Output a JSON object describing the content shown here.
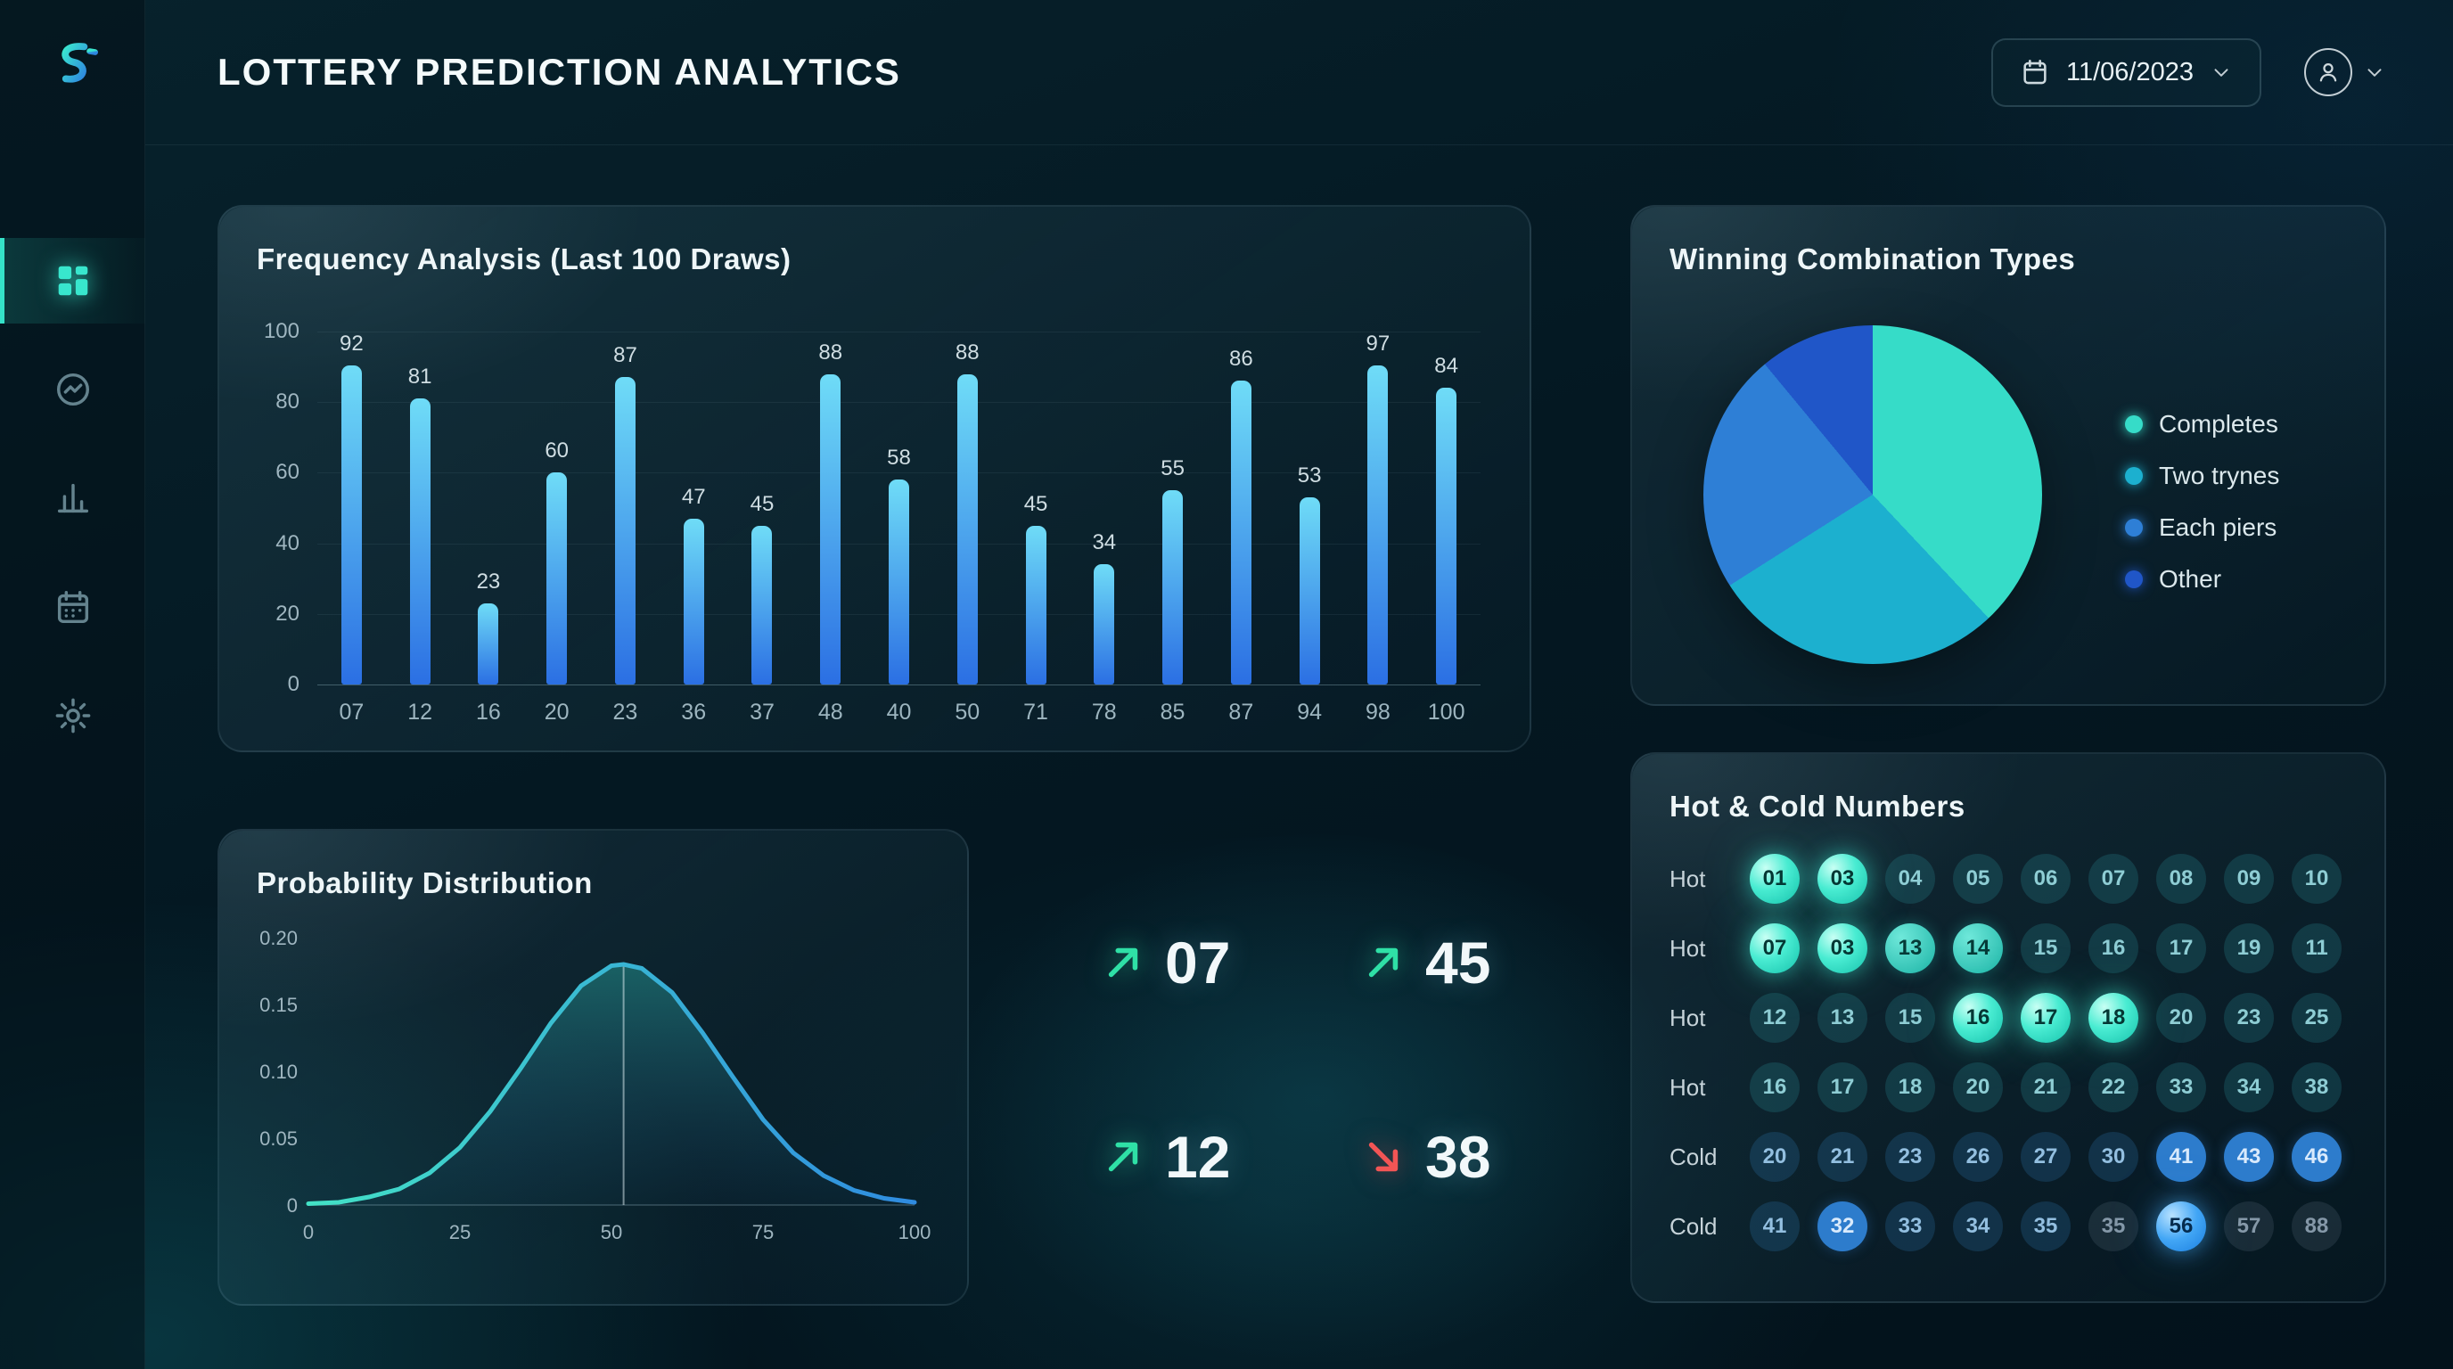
{
  "header": {
    "title": "LOTTERY PREDICTION ANALYTICS",
    "date": "11/06/2023"
  },
  "sidebar": {
    "items": [
      {
        "label": "dashboard",
        "active": true
      },
      {
        "label": "analytics",
        "active": false
      },
      {
        "label": "bar-charts",
        "active": false
      },
      {
        "label": "calendar",
        "active": false
      },
      {
        "label": "settings",
        "active": false
      }
    ]
  },
  "stats": [
    {
      "value": "07",
      "direction": "up"
    },
    {
      "value": "45",
      "direction": "up"
    },
    {
      "value": "12",
      "direction": "up"
    },
    {
      "value": "38",
      "direction": "down"
    }
  ],
  "hot_cold": {
    "title": "Hot & Cold Numbers",
    "rows": [
      {
        "label": "Hot",
        "numbers": [
          {
            "value": "01",
            "style": "bright"
          },
          {
            "value": "03",
            "style": "bright"
          },
          {
            "value": "04",
            "style": "dim"
          },
          {
            "value": "05",
            "style": "dim"
          },
          {
            "value": "06",
            "style": "dim"
          },
          {
            "value": "07",
            "style": "dim"
          },
          {
            "value": "08",
            "style": "dim"
          },
          {
            "value": "09",
            "style": "dim"
          },
          {
            "value": "10",
            "style": "dim"
          }
        ]
      },
      {
        "label": "Hot",
        "numbers": [
          {
            "value": "07",
            "style": "bright"
          },
          {
            "value": "03",
            "style": "bright"
          },
          {
            "value": "13",
            "style": "medium"
          },
          {
            "value": "14",
            "style": "medium"
          },
          {
            "value": "15",
            "style": "dim"
          },
          {
            "value": "16",
            "style": "dim"
          },
          {
            "value": "17",
            "style": "dim"
          },
          {
            "value": "19",
            "style": "dim"
          },
          {
            "value": "11",
            "style": "dim"
          }
        ]
      },
      {
        "label": "Hot",
        "numbers": [
          {
            "value": "12",
            "style": "dim"
          },
          {
            "value": "13",
            "style": "dim"
          },
          {
            "value": "15",
            "style": "dim"
          },
          {
            "value": "16",
            "style": "bright"
          },
          {
            "value": "17",
            "style": "bright"
          },
          {
            "value": "18",
            "style": "bright"
          },
          {
            "value": "20",
            "style": "dim"
          },
          {
            "value": "23",
            "style": "dim"
          },
          {
            "value": "25",
            "style": "dim"
          }
        ]
      },
      {
        "label": "Hot",
        "numbers": [
          {
            "value": "16",
            "style": "dim"
          },
          {
            "value": "17",
            "style": "dim"
          },
          {
            "value": "18",
            "style": "dim"
          },
          {
            "value": "20",
            "style": "dim"
          },
          {
            "value": "21",
            "style": "dim"
          },
          {
            "value": "22",
            "style": "dim"
          },
          {
            "value": "33",
            "style": "dim"
          },
          {
            "value": "34",
            "style": "dim"
          },
          {
            "value": "38",
            "style": "dim"
          }
        ]
      },
      {
        "label": "Cold",
        "numbers": [
          {
            "value": "20",
            "style": "cold"
          },
          {
            "value": "21",
            "style": "cold"
          },
          {
            "value": "23",
            "style": "cold"
          },
          {
            "value": "26",
            "style": "cold"
          },
          {
            "value": "27",
            "style": "cold"
          },
          {
            "value": "30",
            "style": "cold"
          },
          {
            "value": "41",
            "style": "blue"
          },
          {
            "value": "43",
            "style": "blue"
          },
          {
            "value": "46",
            "style": "blue"
          }
        ]
      },
      {
        "label": "Cold",
        "numbers": [
          {
            "value": "41",
            "style": "cold"
          },
          {
            "value": "32",
            "style": "blue"
          },
          {
            "value": "33",
            "style": "cold"
          },
          {
            "value": "34",
            "style": "cold"
          },
          {
            "value": "35",
            "style": "cold"
          },
          {
            "value": "35",
            "style": "muted"
          },
          {
            "value": "56",
            "style": "blue-bright"
          },
          {
            "value": "57",
            "style": "muted"
          },
          {
            "value": "88",
            "style": "muted"
          }
        ]
      }
    ]
  },
  "chart_data": [
    {
      "type": "bar",
      "title": "Frequency Analysis (Last 100 Draws)",
      "categories": [
        "07",
        "12",
        "16",
        "20",
        "23",
        "36",
        "37",
        "48",
        "40",
        "50",
        "71",
        "78",
        "85",
        "87",
        "94",
        "98",
        "100"
      ],
      "values": [
        92,
        81,
        23,
        60,
        87,
        47,
        45,
        88,
        58,
        88,
        45,
        34,
        55,
        86,
        53,
        97,
        84
      ],
      "xlabel": "",
      "ylabel": "",
      "ylim": [
        0,
        100
      ],
      "yticks": [
        100,
        80,
        60,
        40,
        20,
        0
      ],
      "grid": true,
      "bar_color_top": "#6fdcf7",
      "bar_color_bottom": "#2b6fe3"
    },
    {
      "type": "pie",
      "title": "Winning Combination Types",
      "labels": [
        "Completes",
        "Two trynes",
        "Each piers",
        "Other"
      ],
      "values": [
        38,
        28,
        23,
        11
      ],
      "colors": [
        "#36dcc8",
        "#1cb0cf",
        "#2e7fd6",
        "#2056c8"
      ],
      "legend_position": "right"
    },
    {
      "type": "area",
      "title": "Probability Distribution",
      "xlim": [
        0,
        100
      ],
      "ylim": [
        0,
        0.2
      ],
      "xticks": [
        "0",
        "25",
        "50",
        "75",
        "100"
      ],
      "yticks": [
        "0.20",
        "0.15",
        "0.10",
        "0.05",
        "0"
      ],
      "marker_x": 52,
      "marker_y": 0.18,
      "points": [
        [
          0,
          0.001
        ],
        [
          5,
          0.002
        ],
        [
          10,
          0.006
        ],
        [
          15,
          0.012
        ],
        [
          20,
          0.024
        ],
        [
          25,
          0.043
        ],
        [
          30,
          0.07
        ],
        [
          35,
          0.102
        ],
        [
          40,
          0.136
        ],
        [
          45,
          0.164
        ],
        [
          50,
          0.179
        ],
        [
          52,
          0.18
        ],
        [
          55,
          0.177
        ],
        [
          60,
          0.159
        ],
        [
          65,
          0.129
        ],
        [
          70,
          0.096
        ],
        [
          75,
          0.064
        ],
        [
          80,
          0.039
        ],
        [
          85,
          0.022
        ],
        [
          90,
          0.011
        ],
        [
          95,
          0.005
        ],
        [
          100,
          0.002
        ]
      ],
      "line_color_left": "#43e2c6",
      "line_color_right": "#2f8be0"
    }
  ]
}
